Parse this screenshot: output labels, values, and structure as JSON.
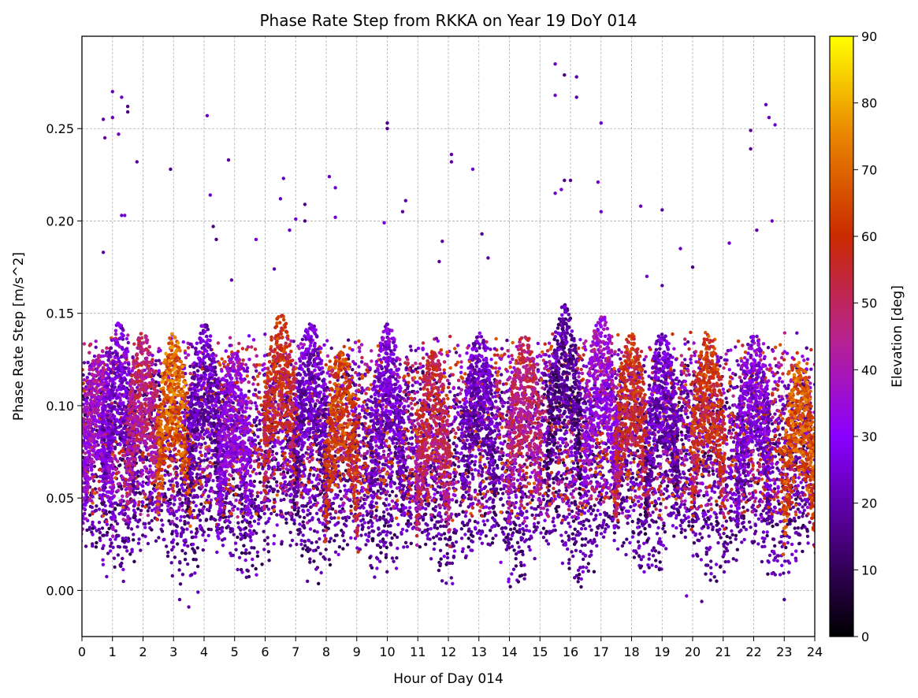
{
  "chart_data": {
    "type": "scatter",
    "title": "Phase Rate Step from RKKA on Year 19 DoY 014",
    "xlabel": "Hour of Day 014",
    "ylabel": "Phase Rate Step [m/s^2]",
    "xlim": [
      0,
      24
    ],
    "ylim": [
      -0.025,
      0.3
    ],
    "xticks": [
      "0",
      "1",
      "2",
      "3",
      "4",
      "5",
      "6",
      "7",
      "8",
      "9",
      "10",
      "11",
      "12",
      "13",
      "14",
      "15",
      "16",
      "17",
      "18",
      "19",
      "20",
      "21",
      "22",
      "23",
      "24"
    ],
    "yticks": [
      "0.00",
      "0.05",
      "0.10",
      "0.15",
      "0.20",
      "0.25"
    ],
    "grid": true,
    "colorbar": {
      "label": "Elevation [deg]",
      "range": [
        0,
        90
      ],
      "ticks": [
        "0",
        "10",
        "20",
        "30",
        "40",
        "50",
        "60",
        "70",
        "80",
        "90"
      ],
      "colormap": [
        "#000000",
        "#4b0082",
        "#8a00ff",
        "#b8238c",
        "#c92a00",
        "#e98400",
        "#ffff00"
      ]
    },
    "peaks": [
      {
        "x": 0.5,
        "y": 0.13,
        "elev": 40
      },
      {
        "x": 1.2,
        "y": 0.145,
        "elev": 28
      },
      {
        "x": 2.0,
        "y": 0.14,
        "elev": 50
      },
      {
        "x": 3.0,
        "y": 0.14,
        "elev": 72
      },
      {
        "x": 4.0,
        "y": 0.145,
        "elev": 25
      },
      {
        "x": 5.0,
        "y": 0.13,
        "elev": 35
      },
      {
        "x": 6.5,
        "y": 0.15,
        "elev": 60
      },
      {
        "x": 7.5,
        "y": 0.145,
        "elev": 25
      },
      {
        "x": 8.5,
        "y": 0.13,
        "elev": 65
      },
      {
        "x": 10.0,
        "y": 0.145,
        "elev": 28
      },
      {
        "x": 11.5,
        "y": 0.13,
        "elev": 55
      },
      {
        "x": 13.0,
        "y": 0.14,
        "elev": 25
      },
      {
        "x": 14.5,
        "y": 0.14,
        "elev": 50
      },
      {
        "x": 15.8,
        "y": 0.155,
        "elev": 20
      },
      {
        "x": 17.0,
        "y": 0.15,
        "elev": 38
      },
      {
        "x": 18.0,
        "y": 0.14,
        "elev": 60
      },
      {
        "x": 19.0,
        "y": 0.14,
        "elev": 25
      },
      {
        "x": 20.5,
        "y": 0.14,
        "elev": 62
      },
      {
        "x": 22.0,
        "y": 0.14,
        "elev": 30
      },
      {
        "x": 23.5,
        "y": 0.125,
        "elev": 70
      }
    ],
    "outliers": [
      {
        "x": 0.7,
        "y": 0.255
      },
      {
        "x": 0.75,
        "y": 0.245
      },
      {
        "x": 1.0,
        "y": 0.27
      },
      {
        "x": 1.0,
        "y": 0.256
      },
      {
        "x": 1.3,
        "y": 0.267
      },
      {
        "x": 1.5,
        "y": 0.262
      },
      {
        "x": 1.5,
        "y": 0.259
      },
      {
        "x": 1.8,
        "y": 0.232
      },
      {
        "x": 1.3,
        "y": 0.203
      },
      {
        "x": 1.4,
        "y": 0.203
      },
      {
        "x": 0.7,
        "y": 0.183
      },
      {
        "x": 1.2,
        "y": 0.247
      },
      {
        "x": 2.9,
        "y": 0.228
      },
      {
        "x": 4.1,
        "y": 0.257
      },
      {
        "x": 4.2,
        "y": 0.214
      },
      {
        "x": 4.3,
        "y": 0.197
      },
      {
        "x": 4.4,
        "y": 0.19
      },
      {
        "x": 4.8,
        "y": 0.233
      },
      {
        "x": 4.9,
        "y": 0.168
      },
      {
        "x": 5.7,
        "y": 0.19
      },
      {
        "x": 6.3,
        "y": 0.174
      },
      {
        "x": 6.5,
        "y": 0.212
      },
      {
        "x": 6.6,
        "y": 0.223
      },
      {
        "x": 6.8,
        "y": 0.195
      },
      {
        "x": 7.0,
        "y": 0.201
      },
      {
        "x": 7.3,
        "y": 0.209
      },
      {
        "x": 7.3,
        "y": 0.2
      },
      {
        "x": 8.1,
        "y": 0.224
      },
      {
        "x": 8.3,
        "y": 0.218
      },
      {
        "x": 8.3,
        "y": 0.202
      },
      {
        "x": 10.0,
        "y": 0.253
      },
      {
        "x": 10.0,
        "y": 0.25
      },
      {
        "x": 9.9,
        "y": 0.199
      },
      {
        "x": 10.6,
        "y": 0.211
      },
      {
        "x": 10.5,
        "y": 0.205
      },
      {
        "x": 11.7,
        "y": 0.178
      },
      {
        "x": 11.8,
        "y": 0.189
      },
      {
        "x": 12.1,
        "y": 0.236
      },
      {
        "x": 12.1,
        "y": 0.232
      },
      {
        "x": 12.8,
        "y": 0.228
      },
      {
        "x": 13.1,
        "y": 0.193
      },
      {
        "x": 13.3,
        "y": 0.18
      },
      {
        "x": 15.5,
        "y": 0.285
      },
      {
        "x": 15.5,
        "y": 0.268
      },
      {
        "x": 15.8,
        "y": 0.279
      },
      {
        "x": 16.2,
        "y": 0.278
      },
      {
        "x": 16.2,
        "y": 0.267
      },
      {
        "x": 15.5,
        "y": 0.215
      },
      {
        "x": 15.8,
        "y": 0.222
      },
      {
        "x": 15.7,
        "y": 0.217
      },
      {
        "x": 16.0,
        "y": 0.222
      },
      {
        "x": 16.9,
        "y": 0.221
      },
      {
        "x": 17.0,
        "y": 0.253
      },
      {
        "x": 17.0,
        "y": 0.205
      },
      {
        "x": 18.3,
        "y": 0.208
      },
      {
        "x": 18.5,
        "y": 0.17
      },
      {
        "x": 19.0,
        "y": 0.206
      },
      {
        "x": 19.0,
        "y": 0.165
      },
      {
        "x": 19.6,
        "y": 0.185
      },
      {
        "x": 20.0,
        "y": 0.175
      },
      {
        "x": 21.2,
        "y": 0.188
      },
      {
        "x": 21.9,
        "y": 0.249
      },
      {
        "x": 21.9,
        "y": 0.239
      },
      {
        "x": 22.1,
        "y": 0.195
      },
      {
        "x": 22.4,
        "y": 0.263
      },
      {
        "x": 22.5,
        "y": 0.256
      },
      {
        "x": 22.7,
        "y": 0.252
      },
      {
        "x": 22.6,
        "y": 0.2
      },
      {
        "x": 3.2,
        "y": -0.005
      },
      {
        "x": 3.5,
        "y": -0.009
      },
      {
        "x": 3.8,
        "y": -0.001
      },
      {
        "x": 20.3,
        "y": -0.006
      },
      {
        "x": 19.8,
        "y": -0.003
      },
      {
        "x": 23.0,
        "y": -0.005
      }
    ]
  }
}
